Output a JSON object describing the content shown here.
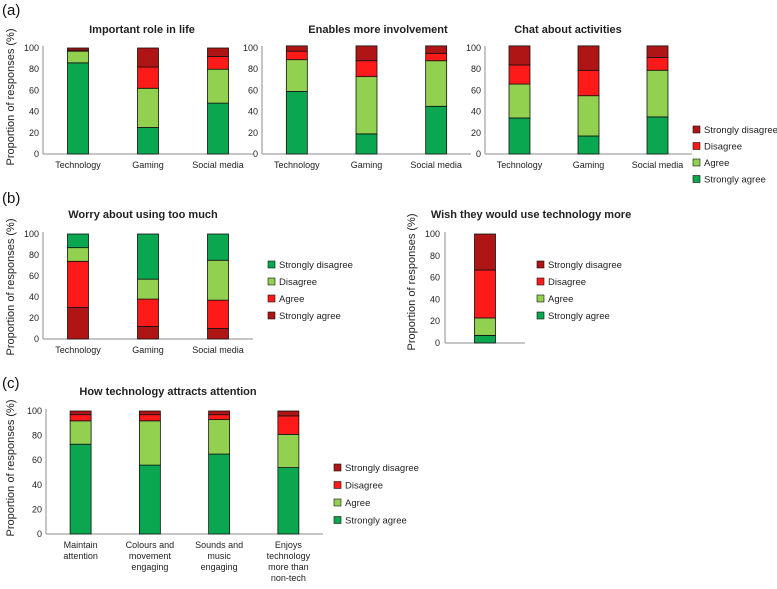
{
  "panel_labels": [
    "(a)",
    "(b)",
    "(c)"
  ],
  "colors": {
    "strongly_disagree": "#b01515",
    "disagree": "#ff1a1a",
    "agree": "#92d050",
    "strongly_agree": "#0aa650"
  },
  "chart_data": [
    {
      "type": "bar",
      "stacked": true,
      "title": "Important role in life",
      "ylabel": "Proportion of responses (%)",
      "xlabel": "",
      "ylim": [
        0,
        100
      ],
      "yticks": [
        "0",
        "20",
        "40",
        "60",
        "80",
        "100"
      ],
      "categories": [
        "Technology",
        "Gaming",
        "Social media"
      ],
      "series": [
        {
          "name": "Strongly agree",
          "color": "#0aa650",
          "values": [
            86,
            25,
            48
          ]
        },
        {
          "name": "Agree",
          "color": "#92d050",
          "values": [
            11,
            37,
            32
          ]
        },
        {
          "name": "Disagree",
          "color": "#ff1a1a",
          "values": [
            1,
            20,
            12
          ]
        },
        {
          "name": "Strongly disagree",
          "color": "#b01515",
          "values": [
            2,
            18,
            8
          ]
        }
      ],
      "legend": null
    },
    {
      "type": "bar",
      "stacked": true,
      "title": "Enables more involvement",
      "ylabel": "",
      "xlabel": "",
      "ylim": [
        0,
        100
      ],
      "yticks": [
        "0",
        "20",
        "40",
        "60",
        "80",
        "100"
      ],
      "categories": [
        "Technology",
        "Gaming",
        "Social media"
      ],
      "series": [
        {
          "name": "Strongly agree",
          "color": "#0aa650",
          "values": [
            59,
            19,
            45
          ]
        },
        {
          "name": "Agree",
          "color": "#92d050",
          "values": [
            30,
            54,
            43
          ]
        },
        {
          "name": "Disagree",
          "color": "#ff1a1a",
          "values": [
            8,
            15,
            7
          ]
        },
        {
          "name": "Strongly disagree",
          "color": "#b01515",
          "values": [
            5,
            14,
            7
          ]
        }
      ],
      "legend": null
    },
    {
      "type": "bar",
      "stacked": true,
      "title": "Chat about activities",
      "ylabel": "",
      "xlabel": "",
      "ylim": [
        0,
        100
      ],
      "yticks": [
        "0",
        "20",
        "40",
        "60",
        "80",
        "100"
      ],
      "categories": [
        "Technology",
        "Gaming",
        "Social media"
      ],
      "series": [
        {
          "name": "Strongly agree",
          "color": "#0aa650",
          "values": [
            34,
            17,
            35
          ]
        },
        {
          "name": "Agree",
          "color": "#92d050",
          "values": [
            32,
            38,
            44
          ]
        },
        {
          "name": "Disagree",
          "color": "#ff1a1a",
          "values": [
            18,
            24,
            12
          ]
        },
        {
          "name": "Strongly disagree",
          "color": "#b01515",
          "values": [
            18,
            23,
            11
          ]
        }
      ],
      "legend": [
        "Strongly disagree",
        "Disagree",
        "Agree",
        "Strongly agree"
      ]
    },
    {
      "type": "bar",
      "stacked": true,
      "title": "Worry about using too much",
      "ylabel": "Proportion of responses (%)",
      "xlabel": "",
      "ylim": [
        0,
        100
      ],
      "yticks": [
        "0",
        "20",
        "40",
        "60",
        "80",
        "100"
      ],
      "categories": [
        "Technology",
        "Gaming",
        "Social media"
      ],
      "series": [
        {
          "name": "Strongly agree",
          "color": "#b01515",
          "values": [
            30,
            12,
            10
          ]
        },
        {
          "name": "Agree",
          "color": "#ff1a1a",
          "values": [
            44,
            26,
            27
          ]
        },
        {
          "name": "Disagree",
          "color": "#92d050",
          "values": [
            13,
            19,
            38
          ]
        },
        {
          "name": "Strongly disagree",
          "color": "#0aa650",
          "values": [
            13,
            43,
            25
          ]
        }
      ],
      "legend": [
        "Strongly disagree",
        "Disagree",
        "Agree",
        "Strongly agree"
      ]
    },
    {
      "type": "bar",
      "stacked": true,
      "title": "Wish they would use technology more",
      "ylabel": "Proportion of responses (%)",
      "xlabel": "",
      "ylim": [
        0,
        100
      ],
      "yticks": [
        "0",
        "20",
        "40",
        "60",
        "80",
        "100"
      ],
      "categories": [
        ""
      ],
      "series": [
        {
          "name": "Strongly agree",
          "color": "#0aa650",
          "values": [
            7
          ]
        },
        {
          "name": "Agree",
          "color": "#92d050",
          "values": [
            16
          ]
        },
        {
          "name": "Disagree",
          "color": "#ff1a1a",
          "values": [
            44
          ]
        },
        {
          "name": "Strongly disagree",
          "color": "#b01515",
          "values": [
            33
          ]
        }
      ],
      "legend": [
        "Strongly disagree",
        "Disagree",
        "Agree",
        "Strongly agree"
      ]
    },
    {
      "type": "bar",
      "stacked": true,
      "title": "How technology attracts attention",
      "ylabel": "Proportion of responses (%)",
      "xlabel": "",
      "ylim": [
        0,
        100
      ],
      "yticks": [
        "0",
        "20",
        "40",
        "60",
        "80",
        "100"
      ],
      "categories": [
        "Maintain attention",
        "Colours and movement engaging",
        "Sounds and music engaging",
        "Enjoys technology more than non-tech"
      ],
      "series": [
        {
          "name": "Strongly agree",
          "color": "#0aa650",
          "values": [
            73,
            56,
            65,
            54
          ]
        },
        {
          "name": "Agree",
          "color": "#92d050",
          "values": [
            19,
            36,
            28,
            27
          ]
        },
        {
          "name": "Disagree",
          "color": "#ff1a1a",
          "values": [
            5,
            5,
            4,
            15
          ]
        },
        {
          "name": "Strongly disagree",
          "color": "#b01515",
          "values": [
            3,
            3,
            3,
            4
          ]
        }
      ],
      "legend": [
        "Strongly disagree",
        "Disagree",
        "Agree",
        "Strongly agree"
      ]
    }
  ]
}
